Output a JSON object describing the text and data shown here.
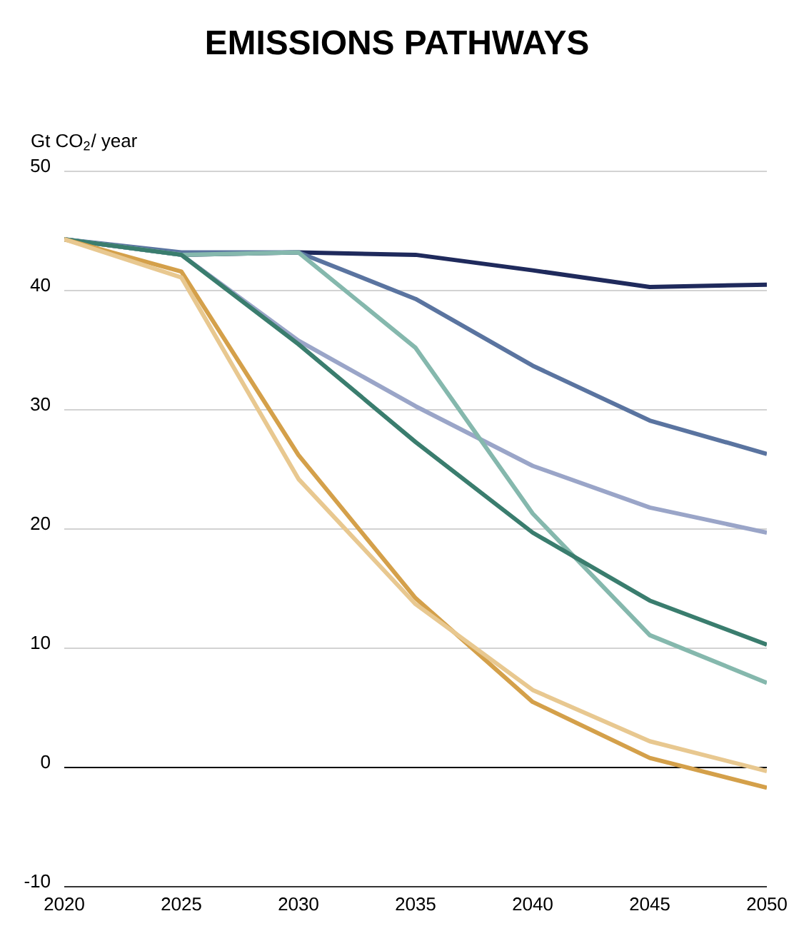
{
  "chart_data": {
    "type": "line",
    "title": "EMISSIONS PATHWAYS",
    "ylabel": "Gt CO$_{2}$/ year",
    "x": [
      2020,
      2025,
      2030,
      2035,
      2040,
      2045,
      2050
    ],
    "series": [
      {
        "color": "#1f2a5c",
        "values": [
          44.3,
          43.0,
          43.2,
          43.0,
          41.7,
          40.3,
          40.5
        ]
      },
      {
        "color": "#5a74a0",
        "values": [
          44.3,
          43.2,
          43.2,
          39.3,
          33.7,
          29.1,
          26.3
        ]
      },
      {
        "color": "#9aa5c8",
        "values": [
          44.3,
          43.0,
          35.8,
          30.3,
          25.3,
          21.8,
          19.7
        ]
      },
      {
        "color": "#85b8ad",
        "values": [
          44.3,
          43.0,
          43.2,
          35.2,
          21.3,
          11.1,
          7.1
        ]
      },
      {
        "color": "#3a7d6e",
        "values": [
          44.3,
          43.0,
          35.5,
          27.3,
          19.7,
          14.0,
          10.3
        ]
      },
      {
        "color": "#d4a04a",
        "values": [
          44.3,
          41.6,
          26.2,
          14.2,
          5.5,
          0.8,
          -1.7
        ]
      },
      {
        "color": "#e8c890",
        "values": [
          44.3,
          41.1,
          24.2,
          13.7,
          6.5,
          2.2,
          -0.3
        ]
      }
    ],
    "xlim": [
      2020,
      2050
    ],
    "xticks": [
      2020,
      2025,
      2030,
      2035,
      2040,
      2045,
      2050
    ],
    "ylim": [
      -10,
      50
    ],
    "yticks": [
      -10,
      0,
      10,
      20,
      30,
      40,
      50
    ],
    "grid": "y",
    "marker": "none",
    "line_style": "solid",
    "ref_lines": [
      {
        "axis": "y",
        "value": 0,
        "color": "#000000"
      }
    ]
  }
}
